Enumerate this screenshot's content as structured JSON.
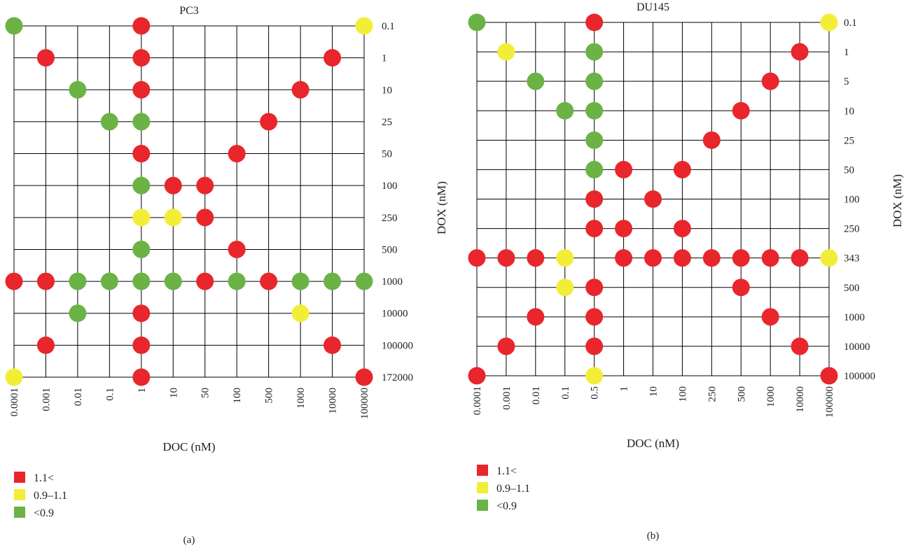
{
  "colors": {
    "grid": "#000000",
    "red": "#e8262b",
    "yellow": "#f2ee38",
    "green": "#6ab344"
  },
  "legend_labels": {
    "R": "1.1<",
    "Y": "0.9–1.1",
    "G": "<0.9"
  },
  "chart_data": [
    {
      "type": "scatter",
      "panel_label": "(a)",
      "title": "PC3",
      "xlabel": "DOC (nM)",
      "ylabel": "",
      "x_categories": [
        "0.0001",
        "0.001",
        "0.01",
        "0.1",
        "1",
        "10",
        "50",
        "100",
        "500",
        "1000",
        "10000",
        "100000"
      ],
      "y_categories": [
        "0.1",
        "1",
        "10",
        "25",
        "50",
        "100",
        "250",
        "500",
        "1000",
        "10000",
        "100000",
        "172000"
      ],
      "legend": [
        "1.1<",
        "0.9–1.1",
        "<0.9"
      ],
      "points": [
        {
          "x": "0.0001",
          "y": "0.1",
          "v": "G"
        },
        {
          "x": "1",
          "y": "0.1",
          "v": "R"
        },
        {
          "x": "100000",
          "y": "0.1",
          "v": "Y"
        },
        {
          "x": "0.001",
          "y": "1",
          "v": "R"
        },
        {
          "x": "1",
          "y": "1",
          "v": "R"
        },
        {
          "x": "10000",
          "y": "1",
          "v": "R"
        },
        {
          "x": "0.01",
          "y": "10",
          "v": "G"
        },
        {
          "x": "1",
          "y": "10",
          "v": "R"
        },
        {
          "x": "1000",
          "y": "10",
          "v": "R"
        },
        {
          "x": "0.1",
          "y": "25",
          "v": "G"
        },
        {
          "x": "1",
          "y": "25",
          "v": "G"
        },
        {
          "x": "500",
          "y": "25",
          "v": "R"
        },
        {
          "x": "1",
          "y": "50",
          "v": "R"
        },
        {
          "x": "100",
          "y": "50",
          "v": "R"
        },
        {
          "x": "1",
          "y": "100",
          "v": "G"
        },
        {
          "x": "10",
          "y": "100",
          "v": "R"
        },
        {
          "x": "50",
          "y": "100",
          "v": "R"
        },
        {
          "x": "1",
          "y": "250",
          "v": "Y"
        },
        {
          "x": "10",
          "y": "250",
          "v": "Y"
        },
        {
          "x": "50",
          "y": "250",
          "v": "R"
        },
        {
          "x": "1",
          "y": "500",
          "v": "G"
        },
        {
          "x": "100",
          "y": "500",
          "v": "R"
        },
        {
          "x": "0.0001",
          "y": "1000",
          "v": "R"
        },
        {
          "x": "0.001",
          "y": "1000",
          "v": "R"
        },
        {
          "x": "0.01",
          "y": "1000",
          "v": "G"
        },
        {
          "x": "0.1",
          "y": "1000",
          "v": "G"
        },
        {
          "x": "1",
          "y": "1000",
          "v": "G"
        },
        {
          "x": "10",
          "y": "1000",
          "v": "G"
        },
        {
          "x": "50",
          "y": "1000",
          "v": "R"
        },
        {
          "x": "100",
          "y": "1000",
          "v": "G"
        },
        {
          "x": "500",
          "y": "1000",
          "v": "R"
        },
        {
          "x": "1000",
          "y": "1000",
          "v": "G"
        },
        {
          "x": "10000",
          "y": "1000",
          "v": "G"
        },
        {
          "x": "100000",
          "y": "1000",
          "v": "G"
        },
        {
          "x": "0.01",
          "y": "10000",
          "v": "G"
        },
        {
          "x": "1",
          "y": "10000",
          "v": "R"
        },
        {
          "x": "1000",
          "y": "10000",
          "v": "Y"
        },
        {
          "x": "0.001",
          "y": "100000",
          "v": "R"
        },
        {
          "x": "1",
          "y": "100000",
          "v": "R"
        },
        {
          "x": "10000",
          "y": "100000",
          "v": "R"
        },
        {
          "x": "0.0001",
          "y": "172000",
          "v": "Y"
        },
        {
          "x": "1",
          "y": "172000",
          "v": "R"
        },
        {
          "x": "100000",
          "y": "172000",
          "v": "R"
        }
      ]
    },
    {
      "type": "scatter",
      "panel_label": "(b)",
      "title": "DU145",
      "xlabel": "DOC (nM)",
      "ylabel": "DOX (nM)",
      "x_categories": [
        "0.0001",
        "0.001",
        "0.01",
        "0.1",
        "0.5",
        "1",
        "10",
        "100",
        "250",
        "500",
        "1000",
        "10000",
        "100000"
      ],
      "y_categories": [
        "0.1",
        "1",
        "5",
        "10",
        "25",
        "50",
        "100",
        "250",
        "343",
        "500",
        "1000",
        "10000",
        "100000"
      ],
      "legend": [
        "1.1<",
        "0.9–1.1",
        "<0.9"
      ],
      "points": [
        {
          "x": "0.0001",
          "y": "0.1",
          "v": "G"
        },
        {
          "x": "0.5",
          "y": "0.1",
          "v": "R"
        },
        {
          "x": "100000",
          "y": "0.1",
          "v": "Y"
        },
        {
          "x": "0.001",
          "y": "1",
          "v": "Y"
        },
        {
          "x": "0.5",
          "y": "1",
          "v": "G"
        },
        {
          "x": "10000",
          "y": "1",
          "v": "R"
        },
        {
          "x": "0.01",
          "y": "5",
          "v": "G"
        },
        {
          "x": "0.5",
          "y": "5",
          "v": "G"
        },
        {
          "x": "1000",
          "y": "5",
          "v": "R"
        },
        {
          "x": "0.1",
          "y": "10",
          "v": "G"
        },
        {
          "x": "0.5",
          "y": "10",
          "v": "G"
        },
        {
          "x": "500",
          "y": "10",
          "v": "R"
        },
        {
          "x": "0.5",
          "y": "25",
          "v": "G"
        },
        {
          "x": "250",
          "y": "25",
          "v": "R"
        },
        {
          "x": "0.5",
          "y": "50",
          "v": "G"
        },
        {
          "x": "1",
          "y": "50",
          "v": "R"
        },
        {
          "x": "100",
          "y": "50",
          "v": "R"
        },
        {
          "x": "0.5",
          "y": "100",
          "v": "R"
        },
        {
          "x": "10",
          "y": "100",
          "v": "R"
        },
        {
          "x": "0.5",
          "y": "250",
          "v": "R"
        },
        {
          "x": "1",
          "y": "250",
          "v": "R"
        },
        {
          "x": "100",
          "y": "250",
          "v": "R"
        },
        {
          "x": "0.0001",
          "y": "343",
          "v": "R"
        },
        {
          "x": "0.001",
          "y": "343",
          "v": "R"
        },
        {
          "x": "0.01",
          "y": "343",
          "v": "R"
        },
        {
          "x": "0.1",
          "y": "343",
          "v": "Y"
        },
        {
          "x": "1",
          "y": "343",
          "v": "R"
        },
        {
          "x": "10",
          "y": "343",
          "v": "R"
        },
        {
          "x": "100",
          "y": "343",
          "v": "R"
        },
        {
          "x": "250",
          "y": "343",
          "v": "R"
        },
        {
          "x": "500",
          "y": "343",
          "v": "R"
        },
        {
          "x": "1000",
          "y": "343",
          "v": "R"
        },
        {
          "x": "10000",
          "y": "343",
          "v": "R"
        },
        {
          "x": "100000",
          "y": "343",
          "v": "Y"
        },
        {
          "x": "0.1",
          "y": "500",
          "v": "Y"
        },
        {
          "x": "0.5",
          "y": "500",
          "v": "R"
        },
        {
          "x": "500",
          "y": "500",
          "v": "R"
        },
        {
          "x": "0.01",
          "y": "1000",
          "v": "R"
        },
        {
          "x": "0.5",
          "y": "1000",
          "v": "R"
        },
        {
          "x": "1000",
          "y": "1000",
          "v": "R"
        },
        {
          "x": "0.001",
          "y": "10000",
          "v": "R"
        },
        {
          "x": "0.5",
          "y": "10000",
          "v": "R"
        },
        {
          "x": "10000",
          "y": "10000",
          "v": "R"
        },
        {
          "x": "0.0001",
          "y": "100000",
          "v": "R"
        },
        {
          "x": "0.5",
          "y": "100000",
          "v": "Y"
        },
        {
          "x": "100000",
          "y": "100000",
          "v": "R"
        }
      ]
    }
  ]
}
